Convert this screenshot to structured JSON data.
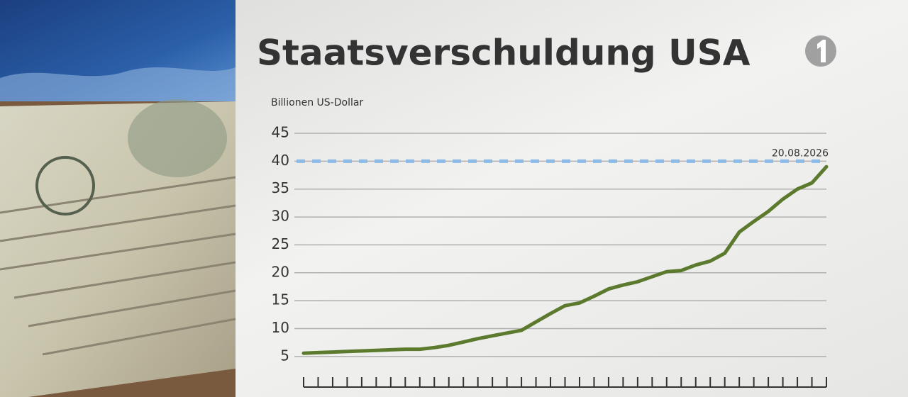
{
  "chart_data": {
    "type": "line",
    "title": "Staatsverschuldung USA",
    "y_label": "Billionen US-Dollar",
    "categories": [
      null,
      null,
      null,
      null,
      null,
      null,
      null,
      null,
      null,
      null,
      null,
      null,
      null,
      null,
      null,
      null,
      null,
      null,
      null,
      null,
      null,
      null,
      null,
      null,
      null,
      null,
      null,
      null,
      null,
      null,
      null,
      null,
      null,
      null,
      null,
      null,
      null
    ],
    "series": [
      {
        "name": null,
        "color": "#5b7a2e",
        "values": [
          5.6,
          5.7,
          5.8,
          5.9,
          6.0,
          6.1,
          6.2,
          6.3,
          6.3,
          6.6,
          7.0,
          7.6,
          8.2,
          8.7,
          9.2,
          9.7,
          11.2,
          12.7,
          14.1,
          14.6,
          15.8,
          17.1,
          17.8,
          18.4,
          19.3,
          20.2,
          20.4,
          21.4,
          22.1,
          23.5,
          27.3,
          29.2,
          31.0,
          33.2,
          35.0,
          36.1,
          39.0
        ]
      }
    ],
    "ylim": [
      1.3,
      45
    ],
    "yticks": [
      5,
      10,
      15,
      20,
      25,
      30,
      35,
      40,
      45
    ],
    "grid": true,
    "reference_line": {
      "value": 40,
      "label": "20.08.2026",
      "color": "#8dbbe8"
    }
  }
}
